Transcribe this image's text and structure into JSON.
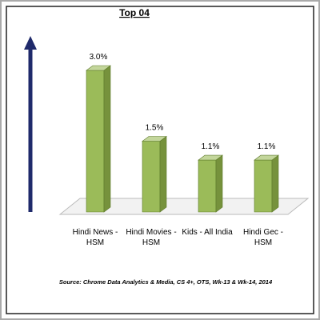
{
  "chart_data": {
    "type": "bar3d",
    "title": "Top 04",
    "categories": [
      [
        "Hindi News -",
        "HSM"
      ],
      [
        "Hindi Movies -",
        "HSM"
      ],
      [
        "Kids - All India"
      ],
      [
        "Hindi Gec -",
        "HSM"
      ]
    ],
    "values": [
      3.0,
      1.5,
      1.1,
      1.1
    ],
    "value_labels": [
      "3.0%",
      "1.5%",
      "1.1%",
      "1.1%"
    ],
    "color": "#9bbb59",
    "source": "Source: Chrome Data Analytics & Media, CS 4+,  OTS, Wk-13 & Wk-14, 2014"
  }
}
